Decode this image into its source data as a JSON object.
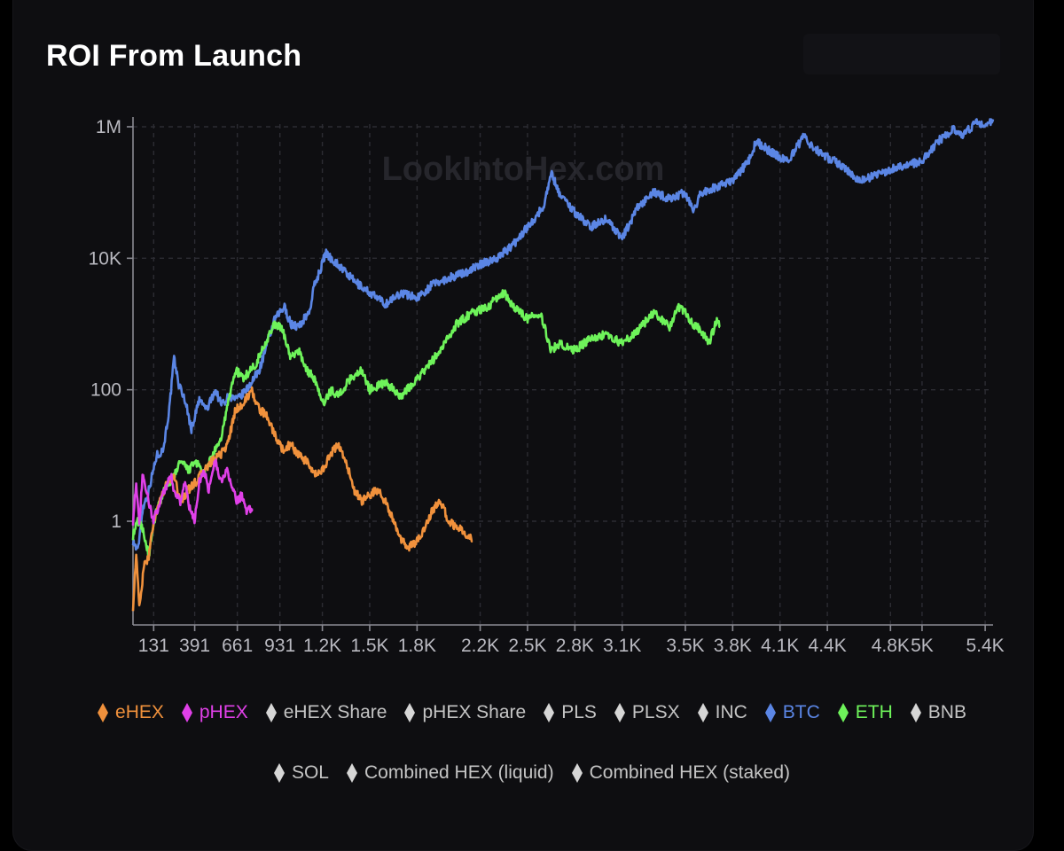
{
  "title": "ROI From Launch",
  "watermark": "LookIntoHex.com",
  "chart_data": {
    "type": "line",
    "title": "ROI From Launch",
    "y_scale": "log",
    "ylim": [
      0.03,
      2000000
    ],
    "xlim": [
      0,
      5450
    ],
    "y_ticks": [
      {
        "value": 1000000,
        "label": "1M"
      },
      {
        "value": 10000,
        "label": "10K"
      },
      {
        "value": 100,
        "label": "100"
      },
      {
        "value": 1,
        "label": "1"
      }
    ],
    "x_ticks": [
      {
        "value": 131,
        "label": "131"
      },
      {
        "value": 391,
        "label": "391"
      },
      {
        "value": 661,
        "label": "661"
      },
      {
        "value": 931,
        "label": "931"
      },
      {
        "value": 1200,
        "label": "1.2K"
      },
      {
        "value": 1500,
        "label": "1.5K"
      },
      {
        "value": 1800,
        "label": "1.8K"
      },
      {
        "value": 2200,
        "label": "2.2K"
      },
      {
        "value": 2500,
        "label": "2.5K"
      },
      {
        "value": 2800,
        "label": "2.8K"
      },
      {
        "value": 3100,
        "label": "3.1K"
      },
      {
        "value": 3500,
        "label": "3.5K"
      },
      {
        "value": 3800,
        "label": "3.8K"
      },
      {
        "value": 4100,
        "label": "4.1K"
      },
      {
        "value": 4400,
        "label": "4.4K"
      },
      {
        "value": 4800,
        "label": "4.8K"
      },
      {
        "value": 5000,
        "label": "5K"
      },
      {
        "value": 5400,
        "label": "5.4K"
      }
    ],
    "grid": true,
    "series": [
      {
        "name": "BTC",
        "color": "#5b86e5",
        "points": [
          [
            0,
            0.5
          ],
          [
            30,
            0.35
          ],
          [
            60,
            1.5
          ],
          [
            100,
            3
          ],
          [
            150,
            10
          ],
          [
            190,
            12
          ],
          [
            230,
            50
          ],
          [
            260,
            300
          ],
          [
            290,
            120
          ],
          [
            330,
            70
          ],
          [
            370,
            25
          ],
          [
            420,
            70
          ],
          [
            470,
            50
          ],
          [
            520,
            100
          ],
          [
            560,
            60
          ],
          [
            610,
            80
          ],
          [
            660,
            70
          ],
          [
            720,
            100
          ],
          [
            800,
            200
          ],
          [
            850,
            500
          ],
          [
            900,
            1200
          ],
          [
            960,
            1800
          ],
          [
            1000,
            1000
          ],
          [
            1050,
            900
          ],
          [
            1120,
            1600
          ],
          [
            1150,
            4000
          ],
          [
            1180,
            6000
          ],
          [
            1220,
            12000
          ],
          [
            1300,
            8000
          ],
          [
            1400,
            4500
          ],
          [
            1500,
            3000
          ],
          [
            1600,
            2000
          ],
          [
            1700,
            3000
          ],
          [
            1800,
            2500
          ],
          [
            1900,
            4000
          ],
          [
            2000,
            5000
          ],
          [
            2100,
            6000
          ],
          [
            2200,
            8000
          ],
          [
            2300,
            10000
          ],
          [
            2400,
            15000
          ],
          [
            2500,
            30000
          ],
          [
            2600,
            60000
          ],
          [
            2650,
            200000
          ],
          [
            2700,
            100000
          ],
          [
            2800,
            50000
          ],
          [
            2900,
            30000
          ],
          [
            3000,
            40000
          ],
          [
            3100,
            20000
          ],
          [
            3200,
            60000
          ],
          [
            3300,
            100000
          ],
          [
            3400,
            80000
          ],
          [
            3500,
            100000
          ],
          [
            3550,
            50000
          ],
          [
            3600,
            100000
          ],
          [
            3700,
            120000
          ],
          [
            3800,
            150000
          ],
          [
            3900,
            300000
          ],
          [
            3950,
            600000
          ],
          [
            4050,
            400000
          ],
          [
            4150,
            300000
          ],
          [
            4250,
            700000
          ],
          [
            4350,
            400000
          ],
          [
            4500,
            250000
          ],
          [
            4600,
            150000
          ],
          [
            4750,
            200000
          ],
          [
            4850,
            250000
          ],
          [
            5000,
            300000
          ],
          [
            5100,
            600000
          ],
          [
            5200,
            900000
          ],
          [
            5250,
            700000
          ],
          [
            5350,
            1200000
          ],
          [
            5400,
            1000000
          ],
          [
            5450,
            1300000
          ]
        ]
      },
      {
        "name": "ETH",
        "color": "#6ef35a",
        "points": [
          [
            0,
            0.6
          ],
          [
            30,
            1
          ],
          [
            60,
            0.8
          ],
          [
            100,
            0.3
          ],
          [
            150,
            1.5
          ],
          [
            200,
            3
          ],
          [
            260,
            5
          ],
          [
            300,
            8
          ],
          [
            350,
            6
          ],
          [
            400,
            8
          ],
          [
            450,
            5
          ],
          [
            500,
            10
          ],
          [
            550,
            15
          ],
          [
            620,
            100
          ],
          [
            650,
            200
          ],
          [
            700,
            150
          ],
          [
            780,
            250
          ],
          [
            850,
            600
          ],
          [
            900,
            1000
          ],
          [
            950,
            800
          ],
          [
            1000,
            300
          ],
          [
            1050,
            400
          ],
          [
            1100,
            200
          ],
          [
            1150,
            150
          ],
          [
            1200,
            60
          ],
          [
            1260,
            100
          ],
          [
            1300,
            80
          ],
          [
            1380,
            150
          ],
          [
            1450,
            200
          ],
          [
            1500,
            100
          ],
          [
            1600,
            130
          ],
          [
            1700,
            80
          ],
          [
            1800,
            150
          ],
          [
            1850,
            200
          ],
          [
            1950,
            400
          ],
          [
            2050,
            1000
          ],
          [
            2150,
            1500
          ],
          [
            2250,
            1800
          ],
          [
            2300,
            2500
          ],
          [
            2350,
            3000
          ],
          [
            2400,
            2000
          ],
          [
            2500,
            1200
          ],
          [
            2580,
            1500
          ],
          [
            2650,
            400
          ],
          [
            2700,
            500
          ],
          [
            2800,
            400
          ],
          [
            2900,
            600
          ],
          [
            3000,
            700
          ],
          [
            3100,
            500
          ],
          [
            3200,
            800
          ],
          [
            3300,
            1500
          ],
          [
            3400,
            900
          ],
          [
            3450,
            1800
          ],
          [
            3500,
            1500
          ],
          [
            3550,
            1000
          ],
          [
            3600,
            800
          ],
          [
            3650,
            500
          ],
          [
            3700,
            1200
          ],
          [
            3720,
            900
          ]
        ]
      },
      {
        "name": "eHEX",
        "color": "#f0913c",
        "points": [
          [
            0,
            0.05
          ],
          [
            20,
            0.3
          ],
          [
            40,
            0.05
          ],
          [
            70,
            0.2
          ],
          [
            100,
            0.3
          ],
          [
            130,
            1
          ],
          [
            170,
            2
          ],
          [
            220,
            4
          ],
          [
            260,
            5
          ],
          [
            300,
            2
          ],
          [
            350,
            3
          ],
          [
            400,
            4
          ],
          [
            450,
            6
          ],
          [
            500,
            8
          ],
          [
            550,
            10
          ],
          [
            600,
            15
          ],
          [
            650,
            50
          ],
          [
            700,
            60
          ],
          [
            750,
            100
          ],
          [
            800,
            50
          ],
          [
            850,
            40
          ],
          [
            900,
            20
          ],
          [
            950,
            12
          ],
          [
            1000,
            15
          ],
          [
            1050,
            10
          ],
          [
            1100,
            8
          ],
          [
            1150,
            5
          ],
          [
            1200,
            6
          ],
          [
            1250,
            10
          ],
          [
            1300,
            15
          ],
          [
            1350,
            8
          ],
          [
            1400,
            3
          ],
          [
            1450,
            2
          ],
          [
            1500,
            2.5
          ],
          [
            1550,
            3
          ],
          [
            1600,
            2
          ],
          [
            1650,
            1
          ],
          [
            1700,
            0.5
          ],
          [
            1750,
            0.4
          ],
          [
            1800,
            0.5
          ],
          [
            1850,
            0.8
          ],
          [
            1900,
            1.5
          ],
          [
            1950,
            2
          ],
          [
            2000,
            1
          ],
          [
            2050,
            0.8
          ],
          [
            2100,
            0.7
          ],
          [
            2150,
            0.5
          ]
        ]
      },
      {
        "name": "pHEX",
        "color": "#e040e8",
        "points": [
          [
            0,
            1
          ],
          [
            20,
            4
          ],
          [
            40,
            0.8
          ],
          [
            60,
            5
          ],
          [
            80,
            3
          ],
          [
            100,
            2
          ],
          [
            130,
            1
          ],
          [
            170,
            2
          ],
          [
            200,
            3
          ],
          [
            240,
            5
          ],
          [
            260,
            3
          ],
          [
            300,
            2
          ],
          [
            330,
            4
          ],
          [
            360,
            1.5
          ],
          [
            390,
            1
          ],
          [
            420,
            4
          ],
          [
            450,
            6
          ],
          [
            480,
            3
          ],
          [
            520,
            8
          ],
          [
            560,
            4
          ],
          [
            600,
            6
          ],
          [
            630,
            3
          ],
          [
            660,
            2
          ],
          [
            690,
            2.5
          ],
          [
            720,
            1.5
          ],
          [
            760,
            1.5
          ]
        ]
      }
    ]
  },
  "legend_row1": [
    {
      "label": "eHEX",
      "color": "#f0913c",
      "active": true
    },
    {
      "label": "pHEX",
      "color": "#e040e8",
      "active": true
    },
    {
      "label": "eHEX Share",
      "color": "#d6d6d6",
      "active": false
    },
    {
      "label": "pHEX Share",
      "color": "#d6d6d6",
      "active": false
    },
    {
      "label": "PLS",
      "color": "#d6d6d6",
      "active": false
    },
    {
      "label": "PLSX",
      "color": "#d6d6d6",
      "active": false
    },
    {
      "label": "INC",
      "color": "#d6d6d6",
      "active": false
    },
    {
      "label": "BTC",
      "color": "#5b86e5",
      "active": true
    },
    {
      "label": "ETH",
      "color": "#6ef35a",
      "active": true
    },
    {
      "label": "BNB",
      "color": "#d6d6d6",
      "active": false
    }
  ],
  "legend_row2": [
    {
      "label": "SOL",
      "color": "#d6d6d6",
      "active": false
    },
    {
      "label": "Combined HEX (liquid)",
      "color": "#d6d6d6",
      "active": false
    },
    {
      "label": "Combined HEX (staked)",
      "color": "#d6d6d6",
      "active": false
    }
  ]
}
